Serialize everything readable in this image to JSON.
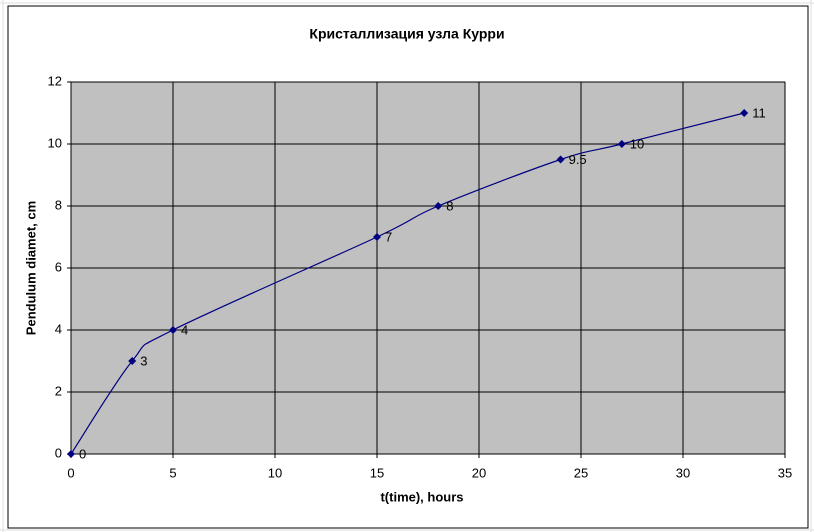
{
  "chart_data": {
    "type": "line",
    "title": "Кристаллизация узла Курри",
    "x_label": "t(time), hours",
    "y_label": "Pendulum diamet, cm",
    "x": [
      0,
      3,
      5,
      15,
      18,
      24,
      27,
      33
    ],
    "values": [
      0,
      3,
      4,
      7,
      8,
      9.5,
      10,
      11
    ],
    "color": "#000080",
    "plot_background": "#c0c0c0",
    "xlim": [
      0,
      35
    ],
    "xticks": [
      0,
      5,
      10,
      15,
      20,
      25,
      30,
      35
    ],
    "ylim": [
      0,
      12
    ],
    "yticks": [
      0,
      2,
      4,
      6,
      8,
      10,
      12
    ],
    "grid": true,
    "smooth": true,
    "data_labels": true
  }
}
